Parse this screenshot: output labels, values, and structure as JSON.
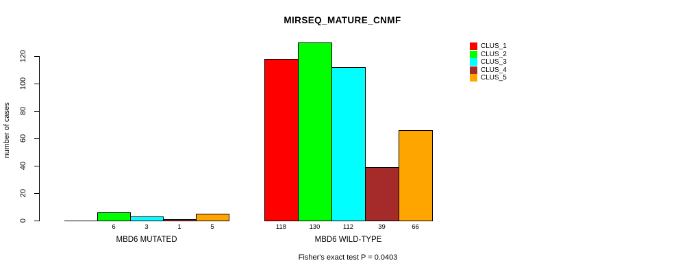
{
  "chart_data": {
    "type": "bar",
    "title": "MIRSEQ_MATURE_CNMF",
    "ylabel": "number of cases",
    "xlabel": "",
    "annotation": "Fisher's exact test P = 0.0403",
    "groups": [
      "MBD6 MUTATED",
      "MBD6 WILD-TYPE"
    ],
    "series": [
      {
        "name": "CLUS_1",
        "color": "#FF0000",
        "values": [
          0,
          118
        ]
      },
      {
        "name": "CLUS_2",
        "color": "#00FF00",
        "values": [
          6,
          130
        ]
      },
      {
        "name": "CLUS_3",
        "color": "#00FFFF",
        "values": [
          3,
          112
        ]
      },
      {
        "name": "CLUS_4",
        "color": "#A52A2A",
        "values": [
          1,
          39
        ]
      },
      {
        "name": "CLUS_5",
        "color": "#FFA500",
        "values": [
          5,
          66
        ]
      }
    ],
    "bar_value_labels": [
      [
        "",
        "6",
        "3",
        "1",
        "5"
      ],
      [
        "118",
        "130",
        "112",
        "39",
        "66"
      ]
    ],
    "yticks": [
      0,
      20,
      40,
      60,
      80,
      100,
      120
    ],
    "ylim": [
      0,
      130
    ],
    "grid": false,
    "legend_position": "top-right",
    "background": "#FFFFFF",
    "axis_color": "#000000",
    "bar_border_color": "#000000"
  }
}
